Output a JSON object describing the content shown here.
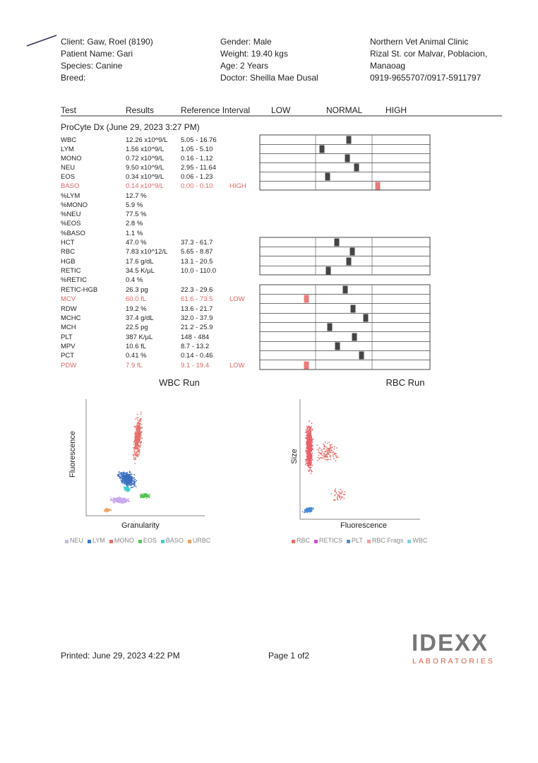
{
  "header": {
    "patient": [
      "Client: Gaw, Roel (8190)",
      "Patient Name: Gari",
      "Species: Canine",
      "Breed:"
    ],
    "details": [
      "Gender: Male",
      "Weight: 19.40 kgs",
      "Age: 2 Years",
      "Doctor: Sheilla Mae Dusal"
    ],
    "clinic": [
      "Northern Vet Animal Clinic",
      "Rizal St. cor Malvar, Poblacion,",
      "Manaoag",
      "0919-9655707/0917-5911797"
    ]
  },
  "table": {
    "columns": [
      "Test",
      "Results",
      "Reference Interval",
      "LOW",
      "NORMAL",
      "HIGH"
    ],
    "section": "ProCyte Dx (June 29, 2023 3:27 PM)",
    "rows": [
      {
        "test": "WBC",
        "result": "12.26 x10^9/L",
        "reference": "5.05 - 16.76"
      },
      {
        "test": "LYM",
        "result": "1.56 x10^9/L",
        "reference": "1.05 - 5.10"
      },
      {
        "test": "MONO",
        "result": "0.72 x10^9/L",
        "reference": "0.16 - 1.12"
      },
      {
        "test": "NEU",
        "result": "9.50 x10^9/L",
        "reference": "2.95 - 11.64"
      },
      {
        "test": "EOS",
        "result": "0.34 x10^9/L",
        "reference": "0.06 - 1.23"
      },
      {
        "test": "BASO",
        "result": "0.14 x10^9/L",
        "reference": "0.00 - 0.10",
        "flag": "HIGH"
      },
      {
        "test": "%LYM",
        "result": "12.7 %"
      },
      {
        "test": "%MONO",
        "result": "5.9 %"
      },
      {
        "test": "%NEU",
        "result": "77.5 %"
      },
      {
        "test": "%EOS",
        "result": "2.8 %"
      },
      {
        "test": "%BASO",
        "result": "1.1 %"
      },
      {
        "test": "HCT",
        "result": "47.0 %",
        "reference": "37.3 - 61.7"
      },
      {
        "test": "RBC",
        "result": "7.83 x10^12/L",
        "reference": "5.65 - 8.87"
      },
      {
        "test": "HGB",
        "result": "17.6 g/dL",
        "reference": "13.1 - 20.5"
      },
      {
        "test": "RETIC",
        "result": "34.5 K/µL",
        "reference": "10.0 - 110.0"
      },
      {
        "test": "%RETIC",
        "result": "0.4 %"
      },
      {
        "test": "RETIC-HGB",
        "result": "26.3 pg",
        "reference": "22.3 - 29.6"
      },
      {
        "test": "MCV",
        "result": "60.0 fL",
        "reference": "61.6 - 73.5",
        "flag": "LOW"
      },
      {
        "test": "RDW",
        "result": "19.2 %",
        "reference": "13.6 - 21.7"
      },
      {
        "test": "MCHC",
        "result": "37.4 g/dL",
        "reference": "32.0 - 37.9"
      },
      {
        "test": "MCH",
        "result": "22.5 pg",
        "reference": "21.2 - 25.9"
      },
      {
        "test": "PLT",
        "result": "387 K/µL",
        "reference": "148 - 484"
      },
      {
        "test": "MPV",
        "result": "10.6 fL",
        "reference": "8.7 - 13.2"
      },
      {
        "test": "PCT",
        "result": "0.41 %",
        "reference": "0.14 - 0.46"
      },
      {
        "test": "PDW",
        "result": "7.9 fL",
        "reference": "9.1 - 19.4",
        "flag": "LOW"
      }
    ]
  },
  "plots": [
    {
      "title": "WBC Run",
      "y_label": "Fluorescence",
      "x_label": "Granularity",
      "legend": [
        "NEU",
        "LYM",
        "MONO",
        "EOS",
        "BASO",
        "URBC"
      ]
    },
    {
      "title": "RBC Run",
      "y_label": "Size",
      "x_label": "Fluorescence",
      "legend": [
        "RBC",
        "RETICS",
        "PLT",
        "RBC Frags",
        "WBC"
      ]
    }
  ],
  "footer": {
    "printed": "Printed: June 29, 2023 4:22 PM",
    "page": "Page 1 of2",
    "logo": "IDEXX",
    "logo_sub": "LABORATORIES"
  }
}
